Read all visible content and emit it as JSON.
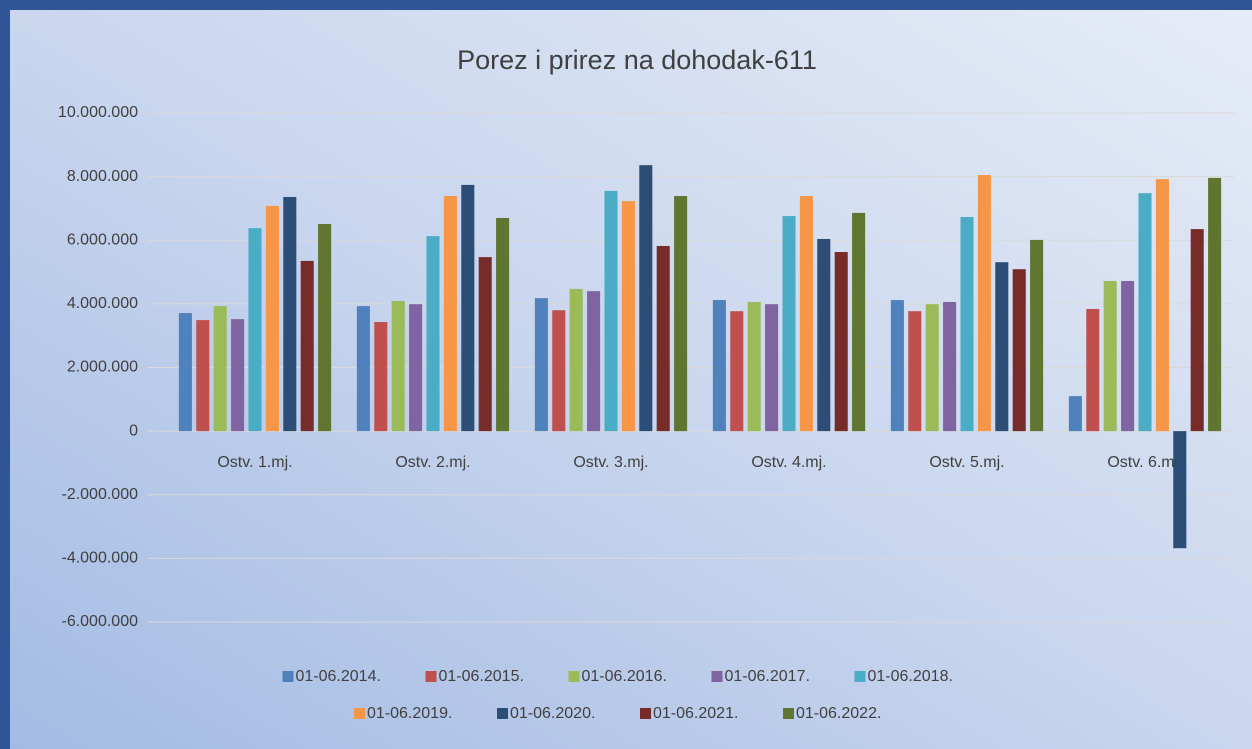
{
  "chart_data": {
    "type": "bar",
    "title": "Porez i prirez na dohodak-611",
    "categories": [
      "Ostv. 1.mj.",
      "Ostv. 2.mj.",
      "Ostv. 3.mj.",
      "Ostv. 4.mj.",
      "Ostv. 5.mj.",
      "Ostv. 6.mj."
    ],
    "series": [
      {
        "name": "01-06.2014.",
        "color": "#4f81bd",
        "values": [
          3710000,
          3930000,
          4180000,
          4120000,
          4120000,
          1100000
        ]
      },
      {
        "name": "01-06.2015.",
        "color": "#c0504d",
        "values": [
          3490000,
          3430000,
          3800000,
          3770000,
          3770000,
          3840000
        ]
      },
      {
        "name": "01-06.2016.",
        "color": "#9bbb59",
        "values": [
          3930000,
          4090000,
          4470000,
          4060000,
          3990000,
          4720000
        ]
      },
      {
        "name": "01-06.2017.",
        "color": "#8064a2",
        "values": [
          3520000,
          3990000,
          4400000,
          3990000,
          4060000,
          4720000
        ]
      },
      {
        "name": "01-06.2018.",
        "color": "#4bacc6",
        "values": [
          6380000,
          6130000,
          7550000,
          6760000,
          6730000,
          7480000
        ]
      },
      {
        "name": "01-06.2019.",
        "color": "#f79646",
        "values": [
          7080000,
          7390000,
          7230000,
          7390000,
          8050000,
          7920000
        ]
      },
      {
        "name": "01-06.2020.",
        "color": "#2c4d75",
        "values": [
          7360000,
          7740000,
          8360000,
          6040000,
          5310000,
          -3680000
        ]
      },
      {
        "name": "01-06.2021.",
        "color": "#772c2a",
        "values": [
          5350000,
          5470000,
          5820000,
          5630000,
          5090000,
          6350000
        ]
      },
      {
        "name": "01-06.2022.",
        "color": "#5f7530",
        "values": [
          6510000,
          6700000,
          7390000,
          6860000,
          6010000,
          7960000
        ]
      }
    ],
    "ylim": [
      -6000000,
      10000000
    ],
    "yticks": [
      {
        "value": -6000000,
        "label": "-6.000.000"
      },
      {
        "value": -4000000,
        "label": "-4.000.000"
      },
      {
        "value": -2000000,
        "label": "-2.000.000"
      },
      0,
      {
        "value": 2000000,
        "label": "2.000.000"
      },
      {
        "value": 4000000,
        "label": "4.000.000"
      },
      {
        "value": 6000000,
        "label": "6.000.000"
      },
      {
        "value": 8000000,
        "label": "8.000.000"
      },
      {
        "value": 10000000,
        "label": "10.000.000"
      }
    ],
    "grid": true,
    "legend": "bottom"
  }
}
